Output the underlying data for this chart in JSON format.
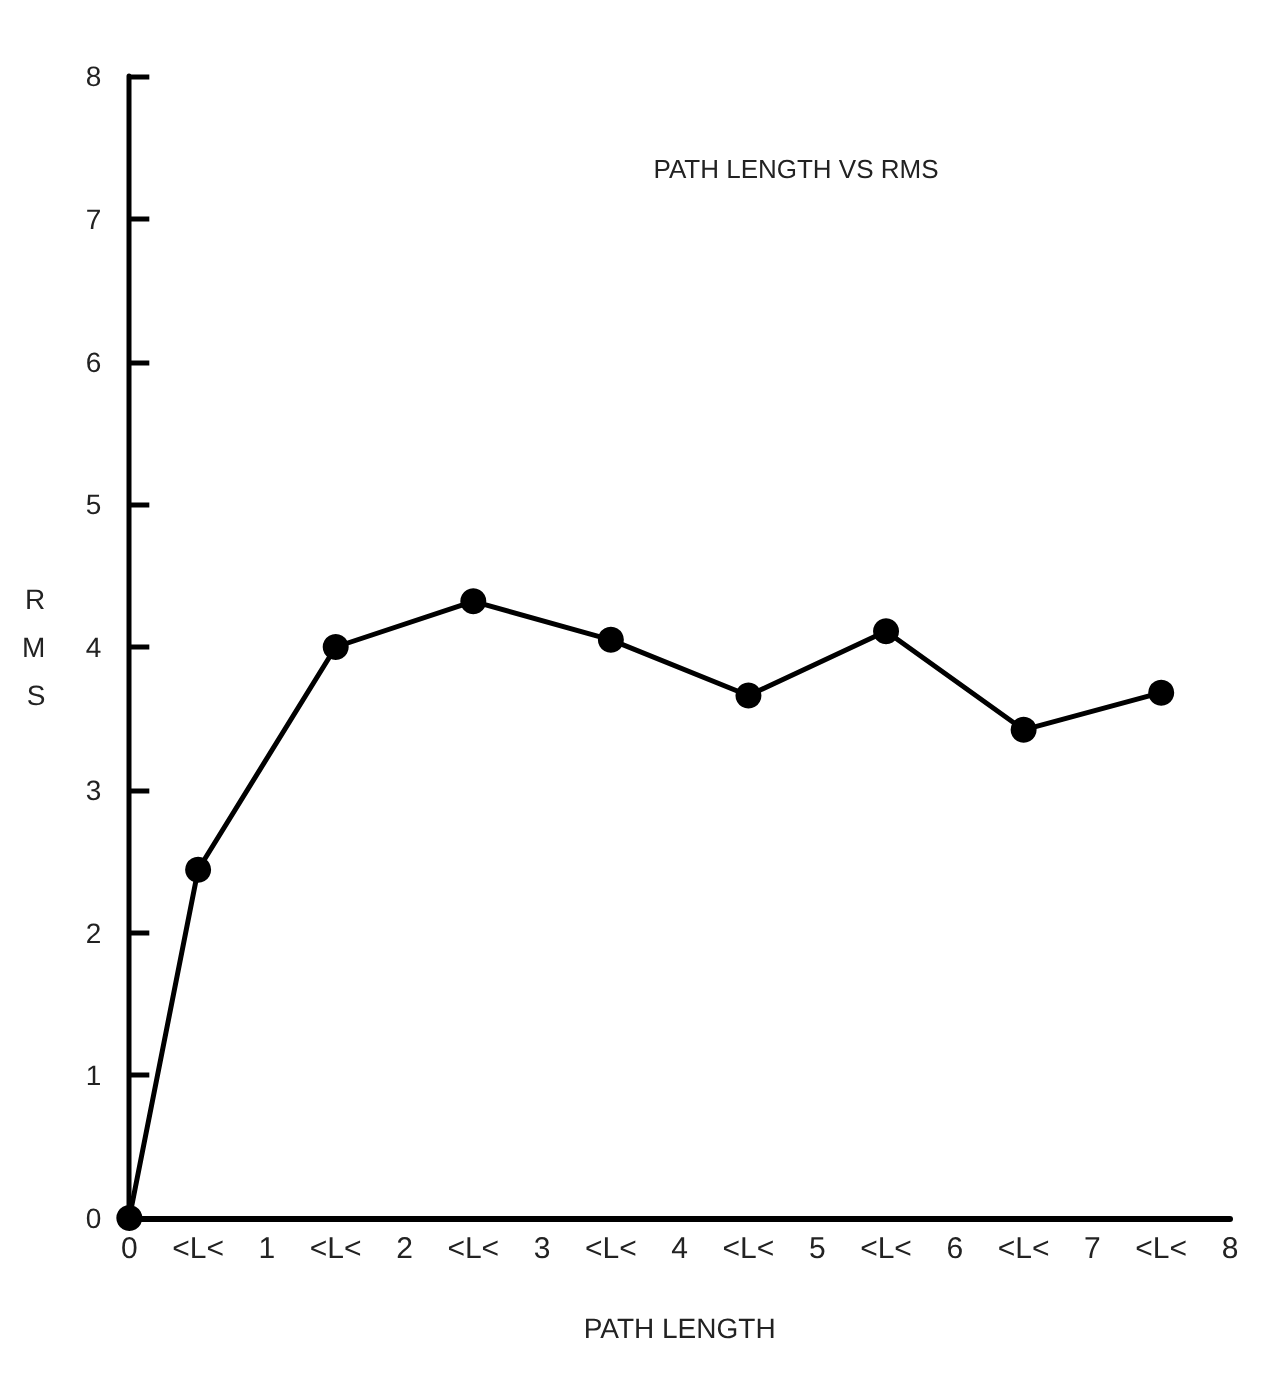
{
  "chart_data": {
    "type": "line",
    "title": "PATH LENGTH VS RMS",
    "xlabel": "PATH LENGTH",
    "ylabel": "RMS",
    "series": [
      {
        "color": "#000000",
        "x": [
          0,
          0.5,
          1.5,
          2.5,
          3.5,
          4.5,
          5.5,
          6.5,
          7.5
        ],
        "values": [
          0,
          2.44,
          4.0,
          4.32,
          4.05,
          3.66,
          4.11,
          3.42,
          3.68
        ],
        "marker": "circle"
      }
    ],
    "xlim": [
      0,
      8
    ],
    "xticks": [
      0,
      {
        "value": 0.5,
        "label": "<L<"
      },
      1,
      {
        "value": 1.5,
        "label": "<L<"
      },
      2,
      {
        "value": 2.5,
        "label": "<L<"
      },
      3,
      {
        "value": 3.5,
        "label": "<L<"
      },
      4,
      {
        "value": 4.5,
        "label": "<L<"
      },
      5,
      {
        "value": 5.5,
        "label": "<L<"
      },
      6,
      {
        "value": 6.5,
        "label": "<L<"
      },
      7,
      {
        "value": 7.5,
        "label": "<L<"
      },
      8
    ],
    "ylim": [
      0,
      8
    ],
    "yticks": [
      0,
      1,
      2,
      3,
      4,
      5,
      6,
      7,
      8
    ],
    "grid": false,
    "line_style": "solid"
  }
}
